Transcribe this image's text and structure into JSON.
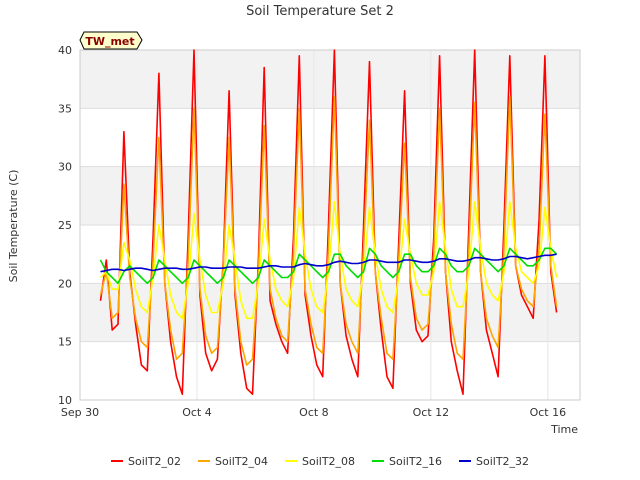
{
  "chart_data": {
    "type": "line",
    "title": "Soil Temperature Set 2",
    "xlabel": "Time",
    "ylabel": "Soil Temperature (C)",
    "badge": "TW_met",
    "x_unit": "days since Sep 30",
    "xlim": [
      0,
      17.1
    ],
    "ylim": [
      10,
      40
    ],
    "yticks": [
      10,
      15,
      20,
      25,
      30,
      35,
      40
    ],
    "xticks": [
      {
        "label": "Sep 30",
        "value": 0
      },
      {
        "label": "Oct 4",
        "value": 4
      },
      {
        "label": "Oct 8",
        "value": 8
      },
      {
        "label": "Oct 12",
        "value": 12
      },
      {
        "label": "Oct 16",
        "value": 16
      }
    ],
    "grid": true,
    "banded_background": true,
    "legend_position": "bottom",
    "x": [
      0.7,
      0.9,
      1.1,
      1.3,
      1.5,
      1.7,
      1.9,
      2.1,
      2.3,
      2.5,
      2.7,
      2.9,
      3.1,
      3.3,
      3.5,
      3.7,
      3.9,
      4.1,
      4.3,
      4.5,
      4.7,
      4.9,
      5.1,
      5.3,
      5.5,
      5.7,
      5.9,
      6.1,
      6.3,
      6.5,
      6.7,
      6.9,
      7.1,
      7.3,
      7.5,
      7.7,
      7.9,
      8.1,
      8.3,
      8.5,
      8.7,
      8.9,
      9.1,
      9.3,
      9.5,
      9.7,
      9.9,
      10.1,
      10.3,
      10.5,
      10.7,
      10.9,
      11.1,
      11.3,
      11.5,
      11.7,
      11.9,
      12.1,
      12.3,
      12.5,
      12.7,
      12.9,
      13.1,
      13.3,
      13.5,
      13.7,
      13.9,
      14.1,
      14.3,
      14.5,
      14.7,
      14.9,
      15.1,
      15.3,
      15.5,
      15.7,
      15.9,
      16.1,
      16.3
    ],
    "series": [
      {
        "name": "SoilT2_02",
        "color": "#ff0000",
        "values": [
          18.5,
          22.0,
          16.0,
          16.5,
          33.0,
          21.0,
          16.5,
          13.0,
          12.5,
          24.0,
          38.0,
          20.0,
          15.0,
          12.0,
          10.5,
          24.0,
          40.0,
          19.0,
          14.0,
          12.5,
          13.5,
          22.0,
          36.5,
          19.0,
          14.0,
          11.0,
          10.5,
          22.0,
          38.5,
          18.5,
          16.5,
          15.0,
          14.0,
          24.0,
          39.5,
          19.0,
          15.5,
          13.0,
          12.0,
          25.0,
          40.0,
          20.0,
          15.5,
          13.5,
          12.0,
          25.0,
          39.0,
          21.0,
          16.0,
          12.0,
          11.0,
          23.5,
          36.5,
          20.0,
          16.0,
          15.0,
          15.5,
          24.0,
          39.5,
          21.0,
          15.0,
          12.5,
          10.5,
          25.0,
          40.0,
          21.0,
          16.0,
          14.0,
          12.0,
          25.0,
          39.5,
          21.5,
          19.0,
          18.0,
          17.0,
          25.5,
          39.5,
          21.0,
          17.5
        ]
      },
      {
        "name": "SoilT2_04",
        "color": "#ffa500",
        "values": [
          19.0,
          21.0,
          17.0,
          17.5,
          28.5,
          20.5,
          17.0,
          15.0,
          14.5,
          22.0,
          32.5,
          20.0,
          16.0,
          13.5,
          14.0,
          22.0,
          35.0,
          19.5,
          15.5,
          14.0,
          14.5,
          21.5,
          32.5,
          19.5,
          15.0,
          13.0,
          13.5,
          21.0,
          33.5,
          19.5,
          17.0,
          15.5,
          15.0,
          22.5,
          35.0,
          19.5,
          16.5,
          14.5,
          14.0,
          23.0,
          36.0,
          20.0,
          16.5,
          15.0,
          14.0,
          23.0,
          34.0,
          21.0,
          17.0,
          14.0,
          13.5,
          22.0,
          32.0,
          20.5,
          17.0,
          16.0,
          16.5,
          22.5,
          35.0,
          21.0,
          16.5,
          14.0,
          13.5,
          23.0,
          35.5,
          21.0,
          17.0,
          15.5,
          14.5,
          23.0,
          36.0,
          21.5,
          19.5,
          18.5,
          18.0,
          23.0,
          34.5,
          21.5,
          18.0
        ]
      },
      {
        "name": "SoilT2_08",
        "color": "#ffff00",
        "values": [
          20.5,
          21.0,
          19.5,
          19.5,
          23.5,
          22.0,
          19.5,
          18.0,
          17.5,
          20.5,
          25.0,
          22.0,
          19.0,
          17.5,
          17.0,
          20.0,
          26.0,
          22.0,
          19.0,
          17.5,
          17.5,
          20.0,
          25.0,
          22.0,
          18.5,
          17.0,
          17.0,
          20.0,
          25.5,
          22.0,
          19.5,
          18.5,
          18.0,
          20.5,
          26.5,
          22.5,
          19.5,
          18.0,
          17.5,
          21.0,
          27.0,
          22.5,
          19.5,
          18.5,
          18.0,
          21.0,
          26.5,
          22.5,
          19.5,
          18.0,
          17.5,
          20.5,
          25.5,
          22.5,
          20.0,
          19.0,
          19.0,
          21.0,
          27.0,
          23.0,
          19.5,
          18.0,
          18.0,
          21.0,
          27.0,
          23.0,
          20.0,
          19.0,
          18.5,
          21.0,
          27.0,
          23.0,
          21.0,
          20.5,
          20.0,
          21.5,
          26.5,
          23.0,
          20.5
        ]
      },
      {
        "name": "SoilT2_16",
        "color": "#00dd00",
        "values": [
          22.0,
          21.0,
          20.5,
          20.0,
          21.0,
          21.5,
          21.0,
          20.5,
          20.0,
          20.5,
          22.0,
          21.5,
          21.0,
          20.5,
          20.0,
          20.5,
          22.0,
          21.5,
          21.0,
          20.5,
          20.0,
          20.5,
          22.0,
          21.5,
          21.0,
          20.5,
          20.0,
          20.5,
          22.0,
          21.5,
          21.0,
          20.5,
          20.5,
          21.0,
          22.5,
          22.0,
          21.5,
          21.0,
          20.5,
          21.0,
          22.5,
          22.5,
          21.5,
          21.0,
          20.5,
          21.0,
          23.0,
          22.5,
          21.5,
          21.0,
          20.5,
          21.0,
          22.5,
          22.5,
          21.5,
          21.0,
          21.0,
          21.5,
          23.0,
          22.5,
          21.5,
          21.0,
          21.0,
          21.5,
          23.0,
          22.5,
          22.0,
          21.5,
          21.0,
          21.5,
          23.0,
          22.5,
          22.0,
          21.5,
          21.5,
          22.0,
          23.0,
          23.0,
          22.5
        ]
      },
      {
        "name": "SoilT2_32",
        "color": "#0000cc",
        "values": [
          21.0,
          21.1,
          21.2,
          21.2,
          21.1,
          21.2,
          21.3,
          21.3,
          21.2,
          21.1,
          21.2,
          21.3,
          21.3,
          21.3,
          21.2,
          21.2,
          21.3,
          21.4,
          21.4,
          21.3,
          21.3,
          21.3,
          21.4,
          21.4,
          21.4,
          21.3,
          21.3,
          21.3,
          21.4,
          21.5,
          21.5,
          21.4,
          21.4,
          21.4,
          21.6,
          21.7,
          21.6,
          21.5,
          21.5,
          21.6,
          21.8,
          21.9,
          21.8,
          21.7,
          21.7,
          21.8,
          22.0,
          22.0,
          21.9,
          21.8,
          21.8,
          21.8,
          22.0,
          22.0,
          21.9,
          21.8,
          21.8,
          21.9,
          22.1,
          22.1,
          22.0,
          21.9,
          21.9,
          22.0,
          22.2,
          22.2,
          22.1,
          22.0,
          22.0,
          22.1,
          22.3,
          22.3,
          22.2,
          22.1,
          22.2,
          22.3,
          22.4,
          22.4,
          22.5
        ]
      }
    ]
  }
}
